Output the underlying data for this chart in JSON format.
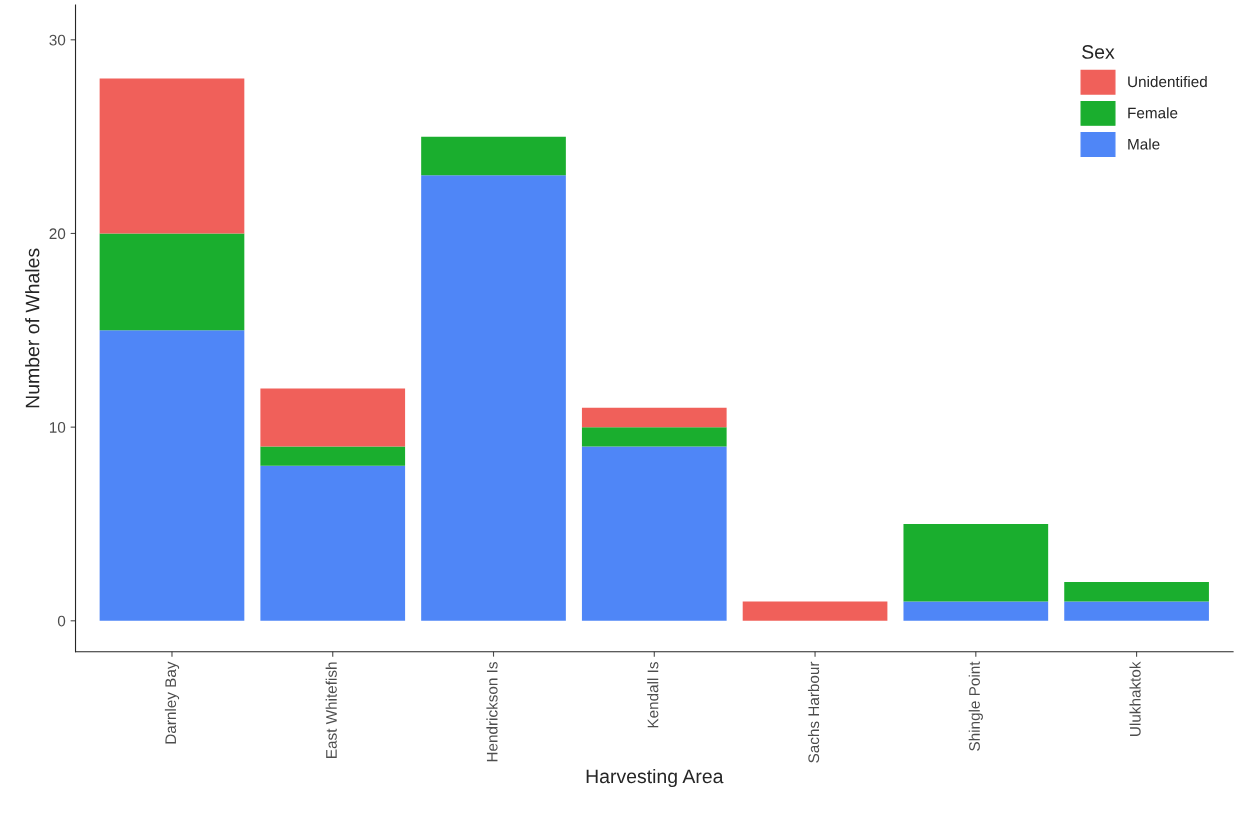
{
  "chart_data": {
    "type": "bar",
    "xlabel": "Harvesting Area",
    "ylabel": "Number of Whales",
    "legend_title": "Sex",
    "categories": [
      "Darnley Bay",
      "East Whitefish",
      "Hendrickson Is",
      "Kendall Is",
      "Sachs Harbour",
      "Shingle Point",
      "Ulukhaktok"
    ],
    "stacked": true,
    "series": [
      {
        "name": "Male",
        "color": "#4f86f7",
        "values": [
          15,
          8,
          23,
          9,
          0,
          1,
          1
        ]
      },
      {
        "name": "Female",
        "color": "#1aae2e",
        "values": [
          5,
          1,
          2,
          1,
          0,
          4,
          1
        ]
      },
      {
        "name": "Unidentified",
        "color": "#f0605a",
        "values": [
          8,
          3,
          0,
          1,
          1,
          0,
          0
        ]
      }
    ],
    "ylim": [
      -1.6,
      31.8
    ],
    "yticks": [
      0,
      10,
      20,
      30
    ],
    "grid": false,
    "legend": "top right"
  }
}
